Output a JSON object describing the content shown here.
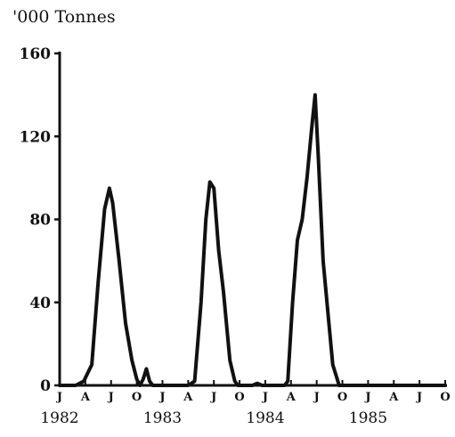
{
  "chart_data": {
    "type": "line",
    "ylabel": "'000 Tonnes",
    "ylim": [
      0,
      160
    ],
    "yticks": [
      "0",
      "40",
      "80",
      "120",
      "160"
    ],
    "month_ticks": [
      "J",
      "A",
      "J",
      "O",
      "J",
      "A",
      "J",
      "O",
      "J",
      "A",
      "J",
      "O",
      "J",
      "A",
      "J",
      "O"
    ],
    "year_labels": [
      "1982",
      "1983",
      "1984",
      "1985"
    ],
    "line_color": "#111111",
    "series": [
      {
        "points": [
          [
            0,
            0
          ],
          [
            1,
            0
          ],
          [
            1.5,
            2
          ],
          [
            2,
            10
          ],
          [
            2.4,
            50
          ],
          [
            2.8,
            85
          ],
          [
            3.1,
            95
          ],
          [
            3.3,
            88
          ],
          [
            3.7,
            60
          ],
          [
            4.1,
            30
          ],
          [
            4.5,
            12
          ],
          [
            4.8,
            3
          ],
          [
            5.0,
            0
          ],
          [
            5.2,
            3
          ],
          [
            5.4,
            8
          ],
          [
            5.6,
            2
          ],
          [
            5.8,
            0
          ],
          [
            6.0,
            0
          ],
          [
            8.0,
            0
          ],
          [
            8.4,
            2
          ],
          [
            8.8,
            40
          ],
          [
            9.1,
            80
          ],
          [
            9.35,
            98
          ],
          [
            9.6,
            95
          ],
          [
            9.9,
            65
          ],
          [
            10.2,
            45
          ],
          [
            10.6,
            12
          ],
          [
            10.9,
            2
          ],
          [
            11.1,
            0
          ],
          [
            12.0,
            0
          ],
          [
            12.3,
            1
          ],
          [
            12.6,
            0
          ],
          [
            14.0,
            0
          ],
          [
            14.2,
            2
          ],
          [
            14.5,
            40
          ],
          [
            14.8,
            70
          ],
          [
            15.1,
            80
          ],
          [
            15.4,
            100
          ],
          [
            15.7,
            125
          ],
          [
            15.9,
            140
          ],
          [
            16.1,
            110
          ],
          [
            16.4,
            60
          ],
          [
            16.7,
            35
          ],
          [
            17.0,
            10
          ],
          [
            17.4,
            0
          ],
          [
            18.0,
            0
          ],
          [
            24.0,
            0
          ]
        ]
      }
    ]
  }
}
